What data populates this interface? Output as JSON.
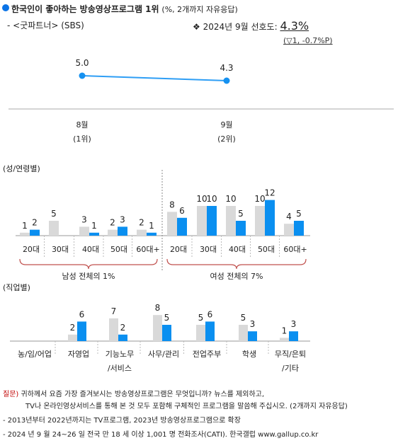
{
  "header": {
    "title_main": "한국인이 좋아하는 방송영상프로그램 1위",
    "title_sub": "(%, 2개까지 자유응답)",
    "program": "- <굿파트너> (SBS)",
    "pref_prefix": "❖ 2024년 9월 선호도:",
    "pref_value": "4.3%",
    "pref_change": "(▽1, -0.7%P)"
  },
  "trend": {
    "points": [
      {
        "label": "8월",
        "rank": "(1위)",
        "value": 5.0,
        "value_label": "5.0"
      },
      {
        "label": "9월",
        "rank": "(2위)",
        "value": 4.3,
        "value_label": "4.3"
      }
    ]
  },
  "chart_data": [
    {
      "type": "line",
      "x": [
        "8월",
        "9월"
      ],
      "x_sublabels": [
        "(1위)",
        "(2위)"
      ],
      "series": [
        {
          "values": [
            5.0,
            4.3
          ]
        }
      ],
      "title": "",
      "xlabel": "",
      "ylabel": ""
    },
    {
      "type": "bar",
      "title": "(성/연령별)",
      "categories": [
        "20대",
        "30대",
        "40대",
        "50대",
        "60대+",
        "20대",
        "30대",
        "40대",
        "50대",
        "60대+"
      ],
      "groups": [
        {
          "label": "남성 전체의 1%",
          "range": [
            0,
            4
          ]
        },
        {
          "label": "여성 전체의 7%",
          "range": [
            5,
            9
          ]
        }
      ],
      "series": [
        {
          "values": [
            1,
            5,
            3,
            2,
            2,
            8,
            10,
            10,
            10,
            4
          ],
          "labels": [
            "1",
            "5",
            "3",
            "2",
            "2",
            "8",
            "10",
            "10",
            "10",
            "4"
          ],
          "color": "#d9d9d9"
        },
        {
          "values": [
            2,
            null,
            1,
            3,
            1,
            6,
            10,
            5,
            12,
            5
          ],
          "labels": [
            "2",
            "",
            "1",
            "3",
            "1",
            "6",
            "10",
            "5",
            "12",
            "5"
          ],
          "color": "#0a8ff0"
        }
      ]
    },
    {
      "type": "bar",
      "title": "(직업별)",
      "categories": [
        "농/임/어업",
        "자영업",
        "기능노무\n/서비스",
        "사무/관리",
        "전업주부",
        "학생",
        "무직/은퇴\n/기타"
      ],
      "series": [
        {
          "values": [
            null,
            2,
            7,
            8,
            5,
            5,
            1
          ],
          "labels": [
            "",
            "2",
            "7",
            "8",
            "5",
            "5",
            "1"
          ],
          "color": "#d9d9d9"
        },
        {
          "values": [
            null,
            6,
            2,
            5,
            6,
            3,
            3
          ],
          "labels": [
            "",
            "6",
            "2",
            "5",
            "6",
            "3",
            "3"
          ],
          "color": "#0a8ff0"
        }
      ]
    }
  ],
  "notes": {
    "q_label": "질문)",
    "q_line1": "귀하께서 요즘 가장 즐겨보시는 방송영상프로그램은 무엇입니까? 뉴스를 제외하고,",
    "q_line2": "TV나 온라인영상서비스를 통해 본 것 모두 포함해 구체적인 프로그램을 말씀해 주십시오. (2개까지 자유응답)",
    "line3": "- 2013년부터 2022년까지는 TV프로그램, 2023년 방송영상프로그램으로 확장",
    "line4": "- 2024 년 9 월 24~26 일 전국 만 18 세 이상 1,001 명 전화조사(CATI). 한국갤럽 www.gallup.co.kr"
  },
  "colors": {
    "accent": "#0a73e6",
    "bar_gray": "#d9d9d9",
    "bar_blue": "#0a8ff0",
    "group_brace": "#c0504d"
  }
}
